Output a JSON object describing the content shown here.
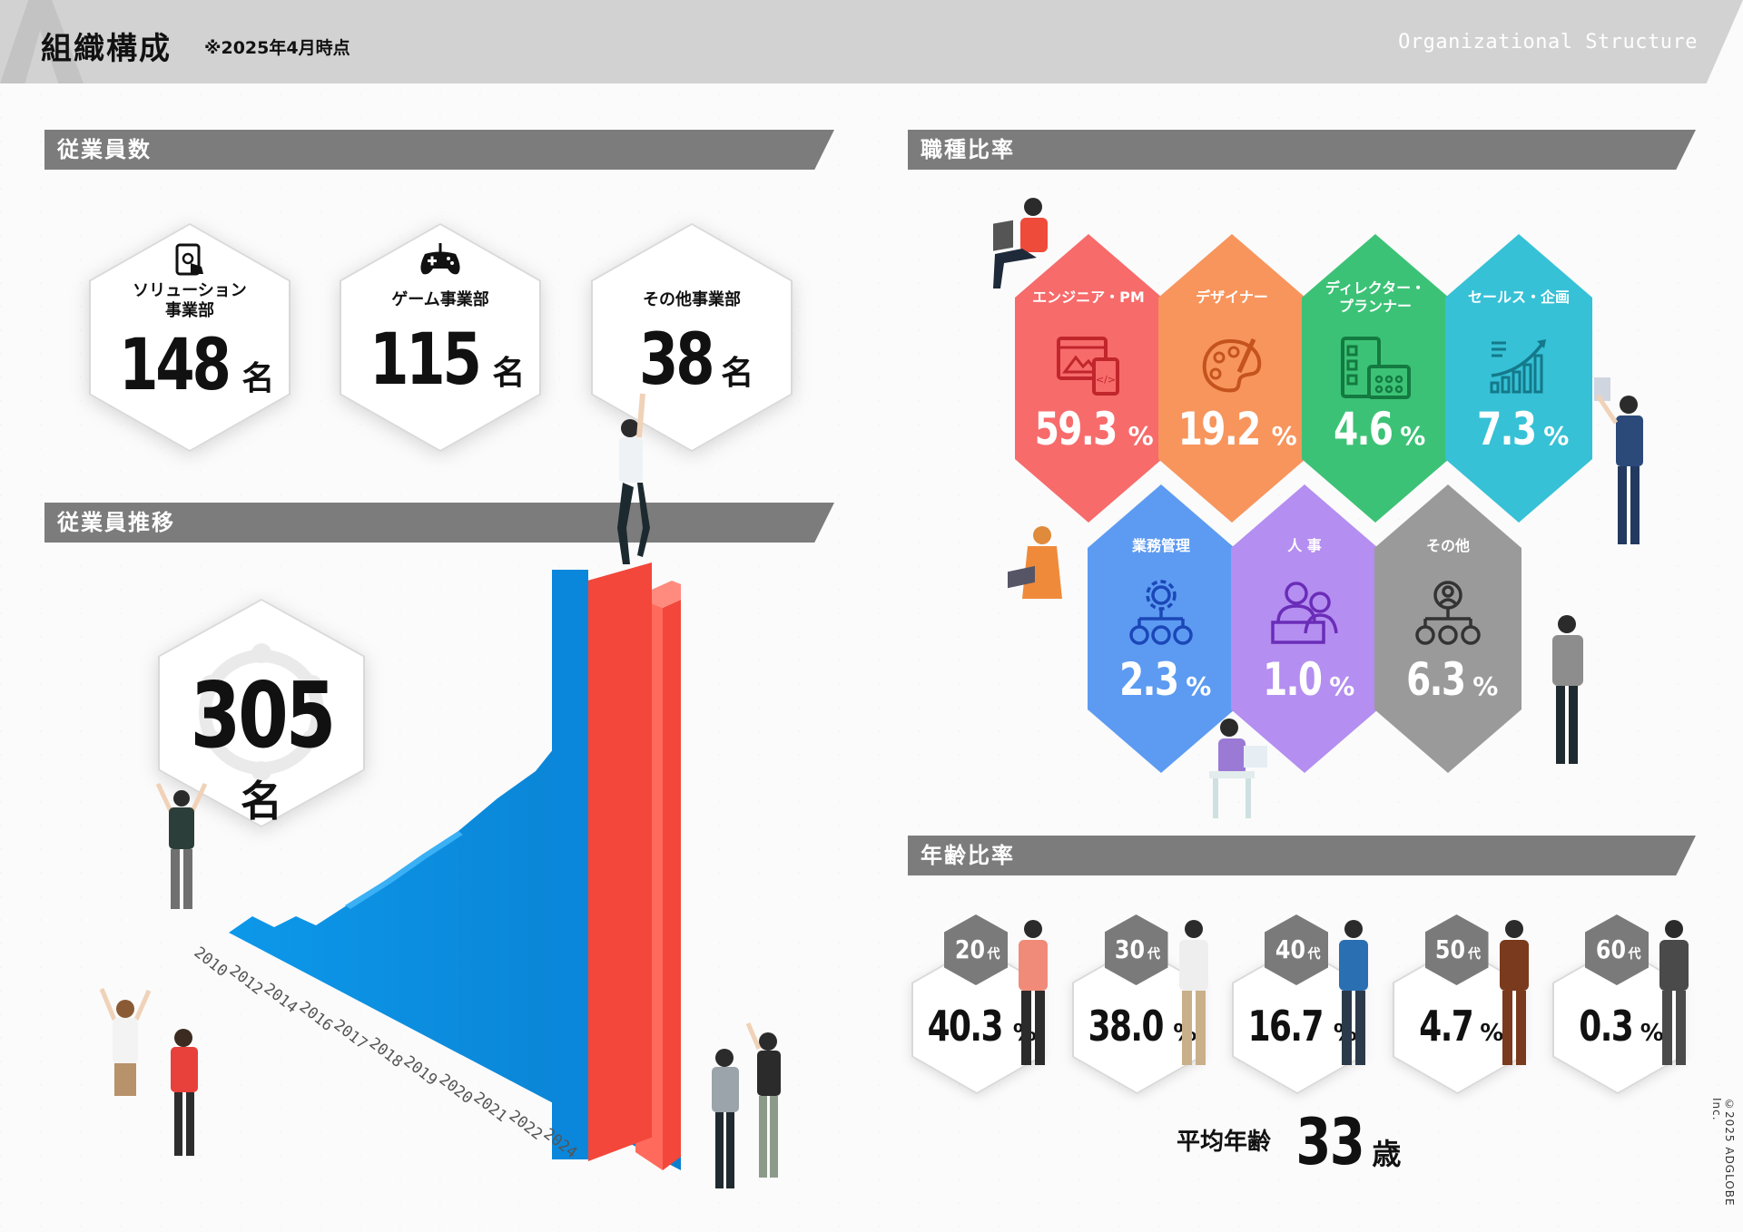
{
  "header": {
    "title": "組織構成",
    "as_of": "※2025年4月時点",
    "en_title": "Organizational Structure"
  },
  "employees": {
    "section_title": "従業員数",
    "departments": [
      {
        "name_line1": "ソリューション",
        "name_line2": "事業部",
        "count": "148",
        "unit": "名",
        "icon": "tablet-touch-icon"
      },
      {
        "name_line1": "ゲーム事業部",
        "name_line2": "",
        "count": "115",
        "unit": "名",
        "icon": "gamepad-icon"
      },
      {
        "name_line1": "その他事業部",
        "name_line2": "",
        "count": "38",
        "unit": "名",
        "icon": ""
      }
    ]
  },
  "trend": {
    "section_title": "従業員推移",
    "total": "305",
    "unit": "名",
    "years": [
      "2010",
      "2012",
      "2014",
      "2016",
      "2017",
      "2018",
      "2019",
      "2020",
      "2021",
      "2022",
      "2024"
    ],
    "highlight_color": "#f45246",
    "bar_color": "#0a8fe3"
  },
  "jobs": {
    "section_title": "職種比率",
    "items": [
      {
        "label1": "エンジニア・PM",
        "label2": "",
        "value": "59.3",
        "unit": "%",
        "color": "#f76b6b",
        "icon": "web-dev-icon"
      },
      {
        "label1": "デザイナー",
        "label2": "",
        "value": "19.2",
        "unit": "%",
        "color": "#f7955d",
        "icon": "palette-icon"
      },
      {
        "label1": "ディレクター・",
        "label2": "プランナー",
        "value": "4.6",
        "unit": "%",
        "color": "#3cc276",
        "icon": "checklist-calendar-icon"
      },
      {
        "label1": "セールス・企画",
        "label2": "",
        "value": "7.3",
        "unit": "%",
        "color": "#36c1d6",
        "icon": "growth-chart-icon"
      },
      {
        "label1": "業務管理",
        "label2": "",
        "value": "2.3",
        "unit": "%",
        "color": "#5d9bf2",
        "icon": "gear-team-icon"
      },
      {
        "label1": "人 事",
        "label2": "",
        "value": "1.0",
        "unit": "%",
        "color": "#b48ef0",
        "icon": "hr-people-icon"
      },
      {
        "label1": "その他",
        "label2": "",
        "value": "6.3",
        "unit": "%",
        "color": "#9a9a9a",
        "icon": "org-network-icon"
      }
    ]
  },
  "age": {
    "section_title": "年齢比率",
    "groups": [
      {
        "decade": "20",
        "suffix": "代",
        "value": "40.3",
        "unit": "%"
      },
      {
        "decade": "30",
        "suffix": "代",
        "value": "38.0",
        "unit": "%"
      },
      {
        "decade": "40",
        "suffix": "代",
        "value": "16.7",
        "unit": "%"
      },
      {
        "decade": "50",
        "suffix": "代",
        "value": "4.7",
        "unit": "%"
      },
      {
        "decade": "60",
        "suffix": "代",
        "value": "0.3",
        "unit": "%"
      }
    ],
    "average_label": "平均年齢",
    "average_value": "33",
    "average_unit": "歳"
  },
  "copyright": "©2025 ADGLOBE Inc."
}
